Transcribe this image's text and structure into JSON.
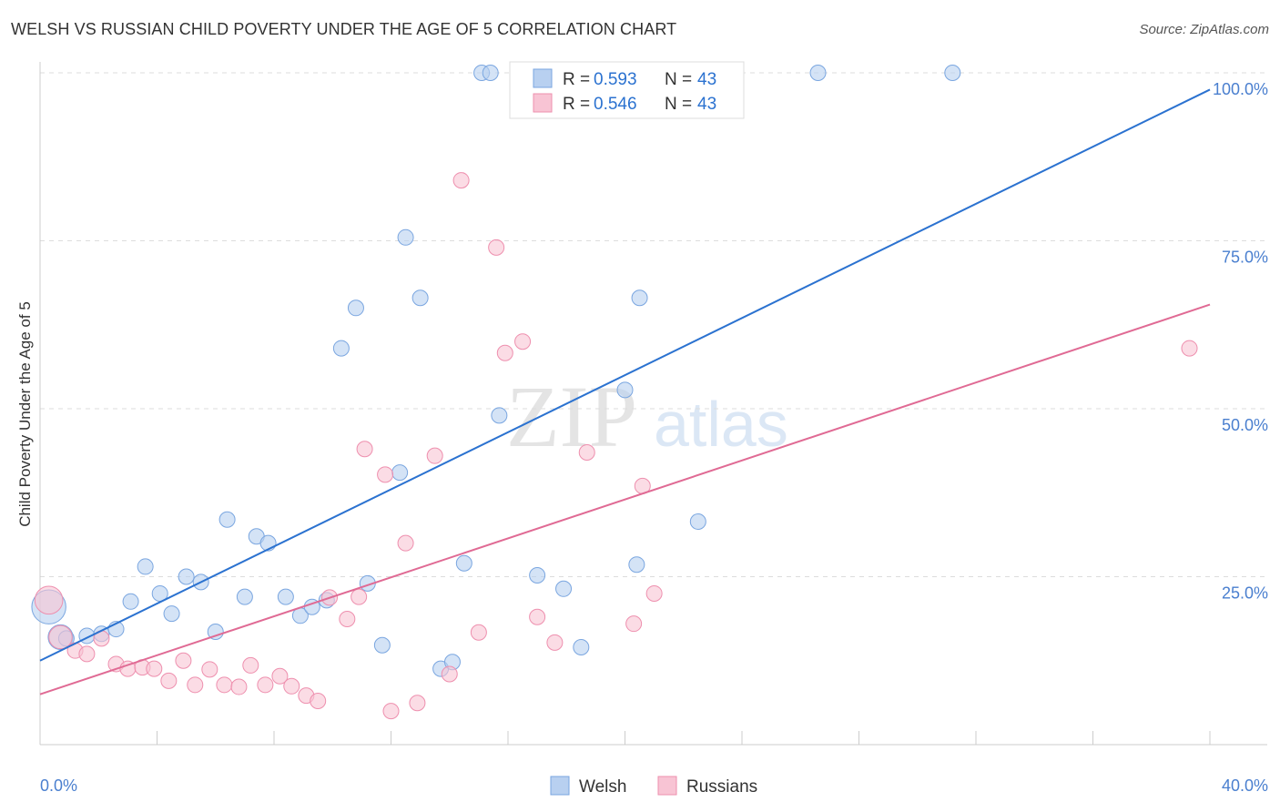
{
  "title": "WELSH VS RUSSIAN CHILD POVERTY UNDER THE AGE OF 5 CORRELATION CHART",
  "source": "Source: ZipAtlas.com",
  "watermark": {
    "left": "ZIP",
    "right": "atlas"
  },
  "colors": {
    "welsh_fill": "#b8d0f0",
    "welsh_stroke": "#7aa6e0",
    "welsh_line": "#2b72d0",
    "russian_fill": "#f8c4d4",
    "russian_stroke": "#ee8fae",
    "russian_line": "#e06a94",
    "axis_label": "#4a7fcf",
    "grid": "#dddddd"
  },
  "legend": {
    "welsh": {
      "r_label": "R =",
      "r_value": "0.593",
      "n_label": "N =",
      "n_value": "43"
    },
    "russians": {
      "r_label": "R =",
      "r_value": "0.546",
      "n_label": "N =",
      "n_value": "43"
    }
  },
  "chart_data": {
    "type": "scatter",
    "title": "WELSH VS RUSSIAN CHILD POVERTY UNDER THE AGE OF 5 CORRELATION CHART",
    "xlabel": "",
    "ylabel": "Child Poverty Under the Age of 5",
    "xlim": [
      0,
      40
    ],
    "ylim": [
      0,
      102
    ],
    "x_tick_labels": [
      "0.0%",
      "40.0%"
    ],
    "y_ticks": [
      25,
      50,
      75,
      100
    ],
    "y_tick_labels": [
      "25.0%",
      "50.0%",
      "75.0%",
      "100.0%"
    ],
    "grid": true,
    "legend_position": "bottom",
    "series": [
      {
        "name": "Welsh",
        "trend": {
          "x": [
            0,
            40
          ],
          "y": [
            12.5,
            97.5
          ]
        },
        "points": [
          {
            "x": 0.3,
            "y": 20.5,
            "s": 2.2
          },
          {
            "x": 0.7,
            "y": 16.0,
            "s": 1.6
          },
          {
            "x": 0.9,
            "y": 15.8,
            "s": 1
          },
          {
            "x": 1.6,
            "y": 16.2,
            "s": 1
          },
          {
            "x": 2.1,
            "y": 16.5,
            "s": 1
          },
          {
            "x": 2.6,
            "y": 17.2,
            "s": 1
          },
          {
            "x": 3.1,
            "y": 21.3,
            "s": 1
          },
          {
            "x": 3.6,
            "y": 26.5,
            "s": 1
          },
          {
            "x": 4.1,
            "y": 22.5,
            "s": 1
          },
          {
            "x": 4.5,
            "y": 19.5,
            "s": 1
          },
          {
            "x": 5.0,
            "y": 25.0,
            "s": 1
          },
          {
            "x": 5.5,
            "y": 24.2,
            "s": 1
          },
          {
            "x": 6.0,
            "y": 16.8,
            "s": 1
          },
          {
            "x": 6.4,
            "y": 33.5,
            "s": 1
          },
          {
            "x": 7.0,
            "y": 22.0,
            "s": 1
          },
          {
            "x": 7.4,
            "y": 31.0,
            "s": 1
          },
          {
            "x": 7.8,
            "y": 30.0,
            "s": 1
          },
          {
            "x": 8.4,
            "y": 22.0,
            "s": 1
          },
          {
            "x": 8.9,
            "y": 19.2,
            "s": 1
          },
          {
            "x": 9.3,
            "y": 20.5,
            "s": 1
          },
          {
            "x": 9.8,
            "y": 21.5,
            "s": 1
          },
          {
            "x": 10.3,
            "y": 59.0,
            "s": 1
          },
          {
            "x": 10.8,
            "y": 65.0,
            "s": 1
          },
          {
            "x": 11.2,
            "y": 24.0,
            "s": 1
          },
          {
            "x": 11.7,
            "y": 14.8,
            "s": 1
          },
          {
            "x": 12.3,
            "y": 40.5,
            "s": 1
          },
          {
            "x": 12.5,
            "y": 75.5,
            "s": 1
          },
          {
            "x": 13.0,
            "y": 66.5,
            "s": 1
          },
          {
            "x": 13.7,
            "y": 11.3,
            "s": 1
          },
          {
            "x": 14.1,
            "y": 12.3,
            "s": 1
          },
          {
            "x": 14.5,
            "y": 27.0,
            "s": 1
          },
          {
            "x": 15.1,
            "y": 100.0,
            "s": 1
          },
          {
            "x": 15.4,
            "y": 100.0,
            "s": 1
          },
          {
            "x": 15.7,
            "y": 49.0,
            "s": 1
          },
          {
            "x": 17.0,
            "y": 25.2,
            "s": 1
          },
          {
            "x": 17.9,
            "y": 23.2,
            "s": 1
          },
          {
            "x": 18.5,
            "y": 14.5,
            "s": 1
          },
          {
            "x": 20.0,
            "y": 52.8,
            "s": 1
          },
          {
            "x": 20.4,
            "y": 26.8,
            "s": 1
          },
          {
            "x": 20.5,
            "y": 66.5,
            "s": 1
          },
          {
            "x": 22.5,
            "y": 33.2,
            "s": 1
          },
          {
            "x": 26.6,
            "y": 100.0,
            "s": 1
          },
          {
            "x": 31.2,
            "y": 100.0,
            "s": 1
          }
        ]
      },
      {
        "name": "Russians",
        "trend": {
          "x": [
            0,
            40
          ],
          "y": [
            7.5,
            65.5
          ]
        },
        "points": [
          {
            "x": 0.3,
            "y": 21.5,
            "s": 1.8
          },
          {
            "x": 0.7,
            "y": 16.0,
            "s": 1.5
          },
          {
            "x": 1.2,
            "y": 14.0,
            "s": 1
          },
          {
            "x": 1.6,
            "y": 13.5,
            "s": 1
          },
          {
            "x": 2.1,
            "y": 15.8,
            "s": 1
          },
          {
            "x": 2.6,
            "y": 12.0,
            "s": 1
          },
          {
            "x": 3.0,
            "y": 11.3,
            "s": 1
          },
          {
            "x": 3.5,
            "y": 11.5,
            "s": 1
          },
          {
            "x": 3.9,
            "y": 11.3,
            "s": 1
          },
          {
            "x": 4.4,
            "y": 9.5,
            "s": 1
          },
          {
            "x": 4.9,
            "y": 12.5,
            "s": 1
          },
          {
            "x": 5.3,
            "y": 8.9,
            "s": 1
          },
          {
            "x": 5.8,
            "y": 11.2,
            "s": 1
          },
          {
            "x": 6.3,
            "y": 8.9,
            "s": 1
          },
          {
            "x": 6.8,
            "y": 8.6,
            "s": 1
          },
          {
            "x": 7.2,
            "y": 11.8,
            "s": 1
          },
          {
            "x": 7.7,
            "y": 8.9,
            "s": 1
          },
          {
            "x": 8.2,
            "y": 10.2,
            "s": 1
          },
          {
            "x": 8.6,
            "y": 8.7,
            "s": 1
          },
          {
            "x": 9.1,
            "y": 7.3,
            "s": 1
          },
          {
            "x": 9.5,
            "y": 6.5,
            "s": 1
          },
          {
            "x": 9.9,
            "y": 21.9,
            "s": 1
          },
          {
            "x": 10.5,
            "y": 18.7,
            "s": 1
          },
          {
            "x": 10.9,
            "y": 22.0,
            "s": 1
          },
          {
            "x": 11.1,
            "y": 44.0,
            "s": 1
          },
          {
            "x": 11.8,
            "y": 40.2,
            "s": 1
          },
          {
            "x": 12.0,
            "y": 5.0,
            "s": 1
          },
          {
            "x": 12.5,
            "y": 30.0,
            "s": 1
          },
          {
            "x": 12.9,
            "y": 6.2,
            "s": 1
          },
          {
            "x": 13.5,
            "y": 43.0,
            "s": 1
          },
          {
            "x": 14.0,
            "y": 10.5,
            "s": 1
          },
          {
            "x": 14.4,
            "y": 84.0,
            "s": 1
          },
          {
            "x": 15.0,
            "y": 16.7,
            "s": 1
          },
          {
            "x": 15.6,
            "y": 74.0,
            "s": 1
          },
          {
            "x": 15.9,
            "y": 58.3,
            "s": 1
          },
          {
            "x": 16.5,
            "y": 60.0,
            "s": 1
          },
          {
            "x": 17.0,
            "y": 19.0,
            "s": 1
          },
          {
            "x": 17.6,
            "y": 15.2,
            "s": 1
          },
          {
            "x": 18.7,
            "y": 43.5,
            "s": 1
          },
          {
            "x": 20.3,
            "y": 18.0,
            "s": 1
          },
          {
            "x": 20.6,
            "y": 38.5,
            "s": 1
          },
          {
            "x": 21.0,
            "y": 22.5,
            "s": 1
          },
          {
            "x": 39.3,
            "y": 59.0,
            "s": 1
          }
        ]
      }
    ]
  }
}
